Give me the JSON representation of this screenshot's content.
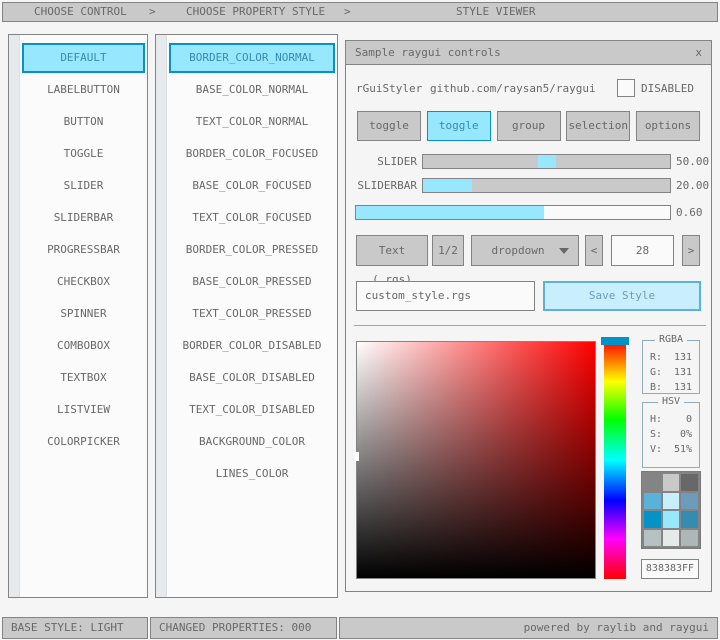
{
  "topbar": {
    "items": [
      "CHOOSE CONTROL",
      "CHOOSE PROPERTY STYLE",
      "STYLE VIEWER"
    ],
    "separator": ">"
  },
  "control_list": {
    "selected_index": 0,
    "items": [
      "DEFAULT",
      "LABELBUTTON",
      "BUTTON",
      "TOGGLE",
      "SLIDER",
      "SLIDERBAR",
      "PROGRESSBAR",
      "CHECKBOX",
      "SPINNER",
      "COMBOBOX",
      "TEXTBOX",
      "LISTVIEW",
      "COLORPICKER"
    ]
  },
  "property_list": {
    "selected_index": 0,
    "items": [
      "BORDER_COLOR_NORMAL",
      "BASE_COLOR_NORMAL",
      "TEXT_COLOR_NORMAL",
      "BORDER_COLOR_FOCUSED",
      "BASE_COLOR_FOCUSED",
      "TEXT_COLOR_FOCUSED",
      "BORDER_COLOR_PRESSED",
      "BASE_COLOR_PRESSED",
      "TEXT_COLOR_PRESSED",
      "BORDER_COLOR_DISABLED",
      "BASE_COLOR_DISABLED",
      "TEXT_COLOR_DISABLED",
      "BACKGROUND_COLOR",
      "LINES_COLOR"
    ]
  },
  "window": {
    "title": "Sample raygui controls",
    "close_label": "x",
    "brand": "rGuiStyler",
    "link": "github.com/raysan5/raygui",
    "disabled_label": "DISABLED",
    "checkbox_checked": false,
    "toggles": {
      "active_index": 1,
      "items": [
        "toggle",
        "toggle",
        "group",
        "selection",
        "options"
      ]
    },
    "slider": {
      "label": "SLIDER",
      "value": "50.00",
      "percent": 50
    },
    "sliderbar": {
      "label": "SLIDERBAR",
      "value": "20.00",
      "percent": 20
    },
    "progressbar": {
      "value": "0.60",
      "percent": 60
    },
    "text_button": "Text (.rgs)",
    "half_button": "1/2",
    "dropdown": {
      "value": "dropdown"
    },
    "spinner": {
      "prev": "<",
      "value": "28",
      "next": ">"
    },
    "file_input": {
      "value": "custom_style.rgs"
    },
    "save_button": "Save Style",
    "color_picker": {
      "rgba": {
        "title": "RGBA",
        "rows": [
          {
            "label": "R:",
            "value": "131"
          },
          {
            "label": "G:",
            "value": "131"
          },
          {
            "label": "B:",
            "value": "131"
          }
        ]
      },
      "hsv": {
        "title": "HSV",
        "rows": [
          {
            "label": "H:",
            "value": "0"
          },
          {
            "label": "S:",
            "value": "0%"
          },
          {
            "label": "V:",
            "value": "51%"
          }
        ]
      },
      "hex_value": "838383FF",
      "swatches": [
        "#848484",
        "#c9c9c9",
        "#686868",
        "#5bb2d9",
        "#c9effe",
        "#6c9bbc",
        "#0492c7",
        "#97e8ff",
        "#368bb0",
        "#b5c1c2",
        "#e6e9e9",
        "#aeb7b8"
      ]
    }
  },
  "statusbar": {
    "base_style": "BASE STYLE: LIGHT",
    "changed_properties": "CHANGED PROPERTIES: 000",
    "credits": "powered by raylib and raygui"
  },
  "colors": {
    "accent_border": "#0492c7",
    "accent_fill": "#97e8ff",
    "accent_text": "#368bb0",
    "focused_fill": "#c9effe",
    "focused_border": "#5bb2d9",
    "bar_fill": "#c9c9c9",
    "border": "#838383",
    "text": "#686868",
    "lines": "#90abb5"
  }
}
